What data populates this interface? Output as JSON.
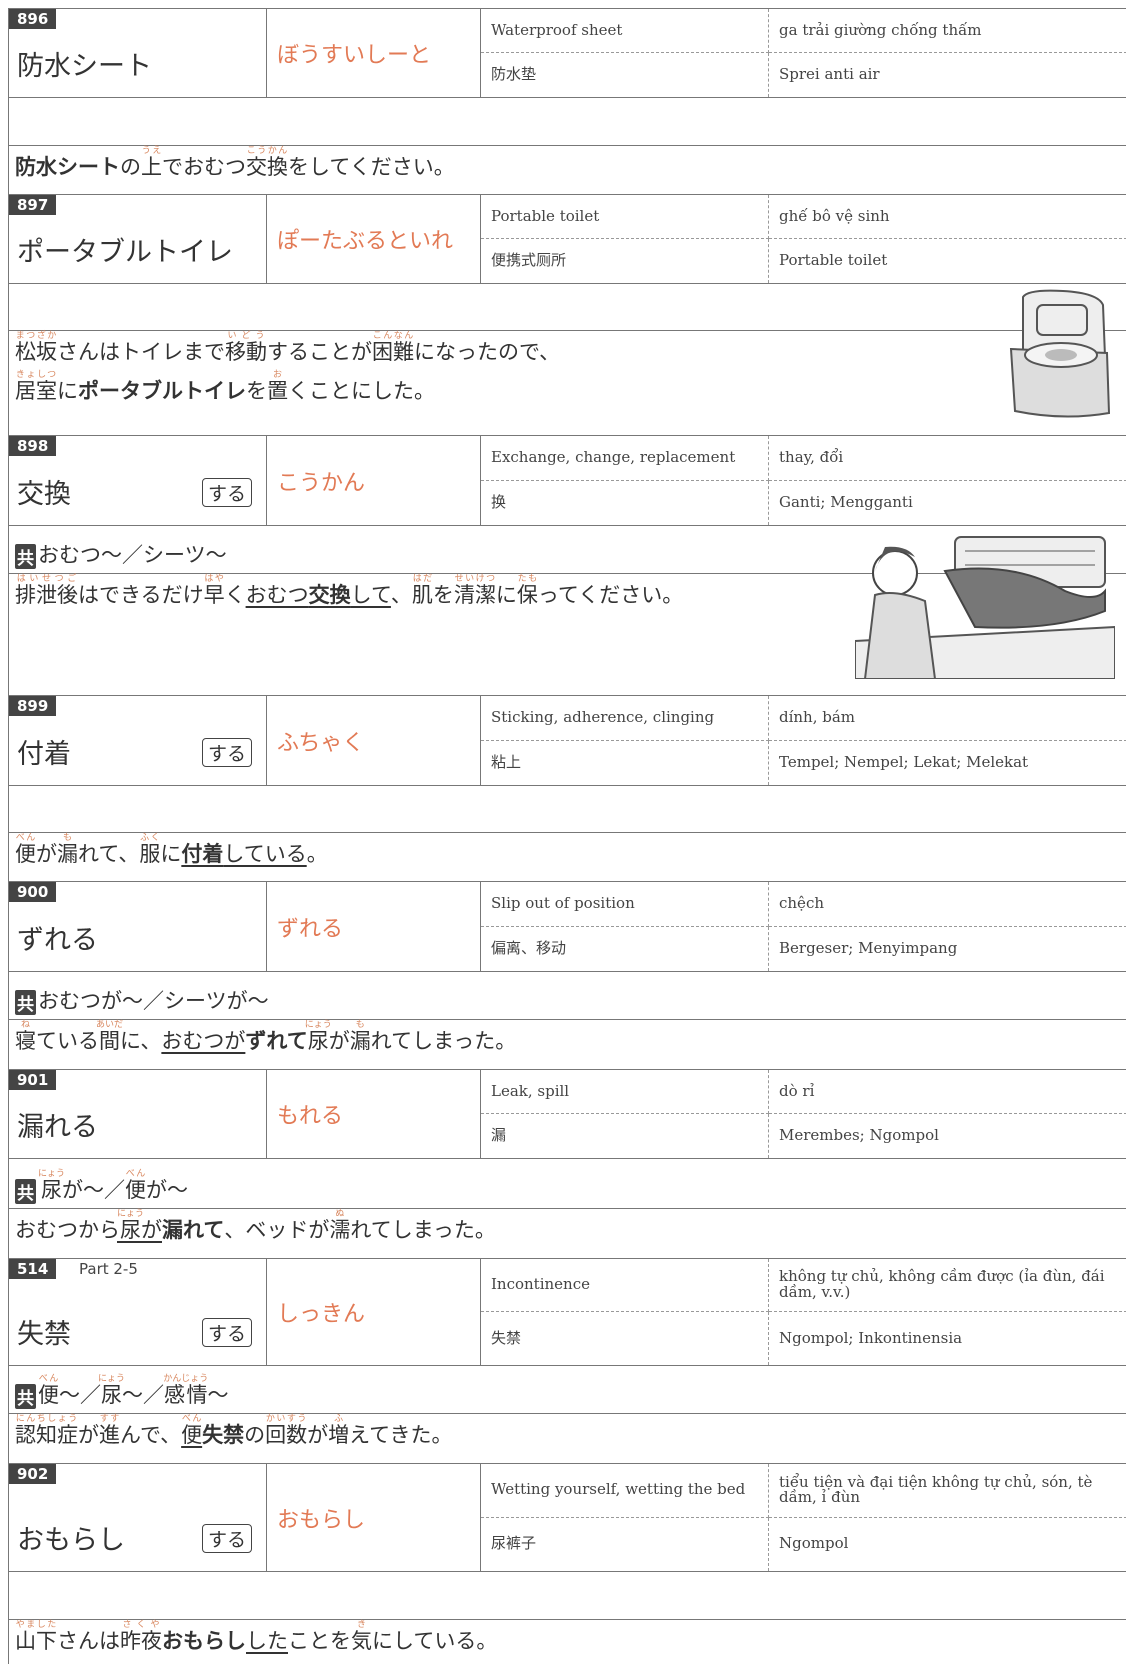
{
  "entries": [
    {
      "number": "896",
      "word": "防水シート",
      "reading": "ぼうすいしーと",
      "en": "Waterproof sheet",
      "vi": "ga trải giường chống thấm",
      "zh": "防水垫",
      "id": "Sprei anti air",
      "example": [
        [
          {
            "t": "防水シート",
            "b": true
          },
          {
            "t": "の"
          },
          {
            "t": "上",
            "r": "うえ"
          },
          {
            "t": "でおむつ"
          },
          {
            "t": "交換",
            "r": "こうかん"
          },
          {
            "t": "をしてください。"
          }
        ]
      ]
    },
    {
      "number": "897",
      "word": "ポータブルトイレ",
      "reading": "ぽーたぶるといれ",
      "en": "Portable toilet",
      "vi": "ghế bô vệ sinh",
      "zh": "便携式厕所",
      "id": "Portable toilet",
      "example": [
        [
          {
            "t": "松坂",
            "r": "まつざか"
          },
          {
            "t": "さんはトイレまで"
          },
          {
            "t": "移動",
            "r": "いどう"
          },
          {
            "t": "することが"
          },
          {
            "t": "困難",
            "r": "こんなん"
          },
          {
            "t": "になったので、"
          }
        ],
        [
          {
            "t": "居室",
            "r": "きょしつ"
          },
          {
            "t": "に"
          },
          {
            "t": "ポータブルトイレ",
            "b": true
          },
          {
            "t": "を"
          },
          {
            "t": "置",
            "r": "お"
          },
          {
            "t": "くことにした。"
          }
        ]
      ]
    },
    {
      "number": "898",
      "word": "交換",
      "suru": "する",
      "reading": "こうかん",
      "en": "Exchange, change, replacement",
      "vi": "thay, đổi",
      "zh": "换",
      "id": "Ganti; Mengganti",
      "collocation": {
        "label": "共",
        "text": [
          {
            "t": "おむつ〜／シーツ〜"
          }
        ]
      },
      "example": [
        [
          {
            "t": "排泄後",
            "r": "はいせつご"
          },
          {
            "t": "はできるだけ"
          },
          {
            "t": "早",
            "r": "はや"
          },
          {
            "t": "く"
          },
          {
            "t": "おむつ",
            "u": true
          },
          {
            "t": "交換",
            "b": true,
            "u": true
          },
          {
            "t": "して",
            "u": true
          },
          {
            "t": "、"
          },
          {
            "t": "肌",
            "r": "はだ"
          },
          {
            "t": "を"
          },
          {
            "t": "清潔",
            "r": "せいけつ"
          },
          {
            "t": "に"
          },
          {
            "t": "保",
            "r": "たも"
          },
          {
            "t": "ってください。"
          }
        ]
      ]
    },
    {
      "number": "899",
      "word": "付着",
      "suru": "する",
      "reading": "ふちゃく",
      "en": "Sticking, adherence, clinging",
      "vi": "dính, bám",
      "zh": "粘上",
      "id": "Tempel; Nempel; Lekat; Melekat",
      "example": [
        [
          {
            "t": "便",
            "r": "べん"
          },
          {
            "t": "が"
          },
          {
            "t": "漏",
            "r": "も"
          },
          {
            "t": "れて、"
          },
          {
            "t": "服",
            "r": "ふく"
          },
          {
            "t": "に"
          },
          {
            "t": "付着",
            "b": true,
            "u": true
          },
          {
            "t": "している",
            "u": true
          },
          {
            "t": "。"
          }
        ]
      ]
    },
    {
      "number": "900",
      "word": "ずれる",
      "reading": "ずれる",
      "en": "Slip out of position",
      "vi": "chệch",
      "zh": "偏离、移动",
      "id": "Bergeser; Menyimpang",
      "collocation": {
        "label": "共",
        "text": [
          {
            "t": "おむつが〜／シーツが〜"
          }
        ]
      },
      "example": [
        [
          {
            "t": "寝",
            "r": "ね"
          },
          {
            "t": "ている"
          },
          {
            "t": "間",
            "r": "あいだ"
          },
          {
            "t": "に、"
          },
          {
            "t": "おむつが",
            "u": true
          },
          {
            "t": "ずれて",
            "b": true
          },
          {
            "t": "尿",
            "r": "にょう"
          },
          {
            "t": "が"
          },
          {
            "t": "漏",
            "r": "も"
          },
          {
            "t": "れてしまった。"
          }
        ]
      ]
    },
    {
      "number": "901",
      "word": "漏れる",
      "reading": "もれる",
      "en": "Leak, spill",
      "vi": "dò rỉ",
      "zh": "漏",
      "id": "Merembes; Ngompol",
      "collocation": {
        "label": "共",
        "text": [
          {
            "t": "尿",
            "r": "にょう"
          },
          {
            "t": "が〜／"
          },
          {
            "t": "便",
            "r": "べん"
          },
          {
            "t": "が〜"
          }
        ]
      },
      "example": [
        [
          {
            "t": "おむつから"
          },
          {
            "t": "尿",
            "r": "にょう",
            "u": true
          },
          {
            "t": "が",
            "u": true
          },
          {
            "t": "漏れて",
            "b": true
          },
          {
            "t": "、ベッドが"
          },
          {
            "t": "濡",
            "r": "ぬ"
          },
          {
            "t": "れてしまった。"
          }
        ]
      ]
    },
    {
      "number": "514",
      "part": "Part 2-5",
      "word": "失禁",
      "suru": "する",
      "reading": "しっきん",
      "en": "Incontinence",
      "vi": "không tự chủ, không cầm được (ỉa đùn, đái dầm, v.v.)",
      "zh": "失禁",
      "id": "Ngompol; Inkontinensia",
      "collocation": {
        "label": "共",
        "text": [
          {
            "t": "便",
            "r": "べん"
          },
          {
            "t": "〜／"
          },
          {
            "t": "尿",
            "r": "にょう"
          },
          {
            "t": "〜／"
          },
          {
            "t": "感情",
            "r": "かんじょう"
          },
          {
            "t": "〜"
          }
        ]
      },
      "example": [
        [
          {
            "t": "認知症",
            "r": "にんちしょう"
          },
          {
            "t": "が"
          },
          {
            "t": "進",
            "r": "すす"
          },
          {
            "t": "んで、"
          },
          {
            "t": "便",
            "r": "べん",
            "u": true
          },
          {
            "t": "失禁",
            "b": true
          },
          {
            "t": "の"
          },
          {
            "t": "回数",
            "r": "かいすう"
          },
          {
            "t": "が"
          },
          {
            "t": "増",
            "r": "ふ"
          },
          {
            "t": "えてきた。"
          }
        ]
      ]
    },
    {
      "number": "902",
      "word": "おもらし",
      "suru": "する",
      "reading": "おもらし",
      "en": "Wetting yourself, wetting the bed",
      "vi": "tiểu tiện và đại tiện không tự chủ, són, tè dầm, ỉ đùn",
      "zh": "尿裤子",
      "id": "Ngompol",
      "example": [
        [
          {
            "t": "山下",
            "r": "やました"
          },
          {
            "t": "さんは"
          },
          {
            "t": "昨夜",
            "r": "さくや"
          },
          {
            "t": "おもらし",
            "b": true
          },
          {
            "t": "した",
            "u": true
          },
          {
            "t": "ことを"
          },
          {
            "t": "気",
            "r": "き"
          },
          {
            "t": "にしている。"
          }
        ]
      ]
    }
  ]
}
